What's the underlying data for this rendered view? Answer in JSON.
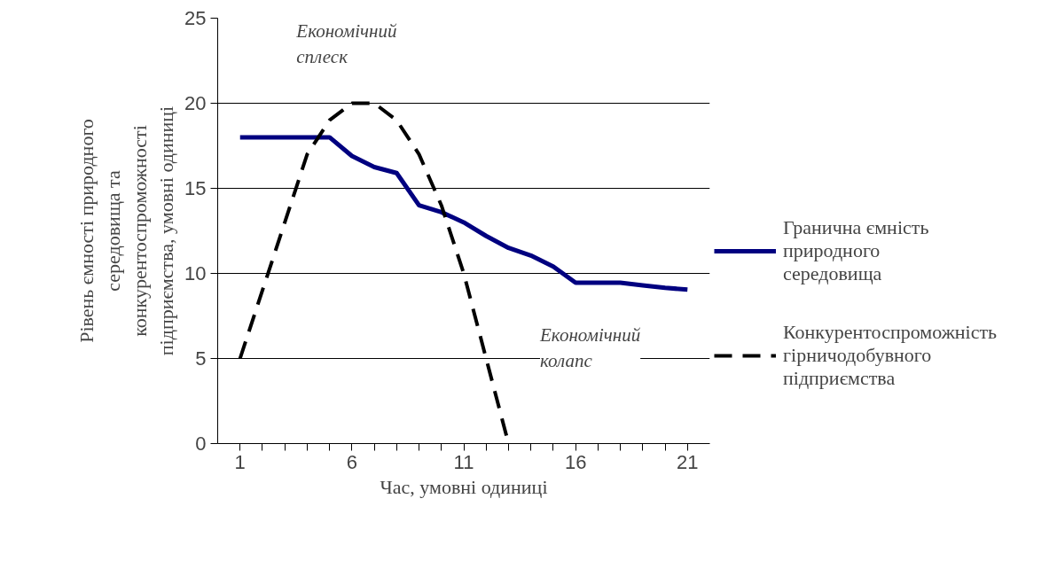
{
  "chart_data": {
    "type": "line",
    "xlabel": "Час, умовні одиниці",
    "ylabel": "Рівень ємності природного середовища та конкурентоспроможності підприємства, умовні одиниці",
    "x": [
      1,
      2,
      3,
      4,
      5,
      6,
      7,
      8,
      9,
      10,
      11,
      12,
      13,
      14,
      15,
      16,
      17,
      18,
      19,
      20,
      21
    ],
    "series": [
      {
        "name": "Гранична ємність природного середовища",
        "color": "#000080",
        "line_style": "solid",
        "values": [
          18,
          18,
          18,
          18,
          18,
          16.9,
          16.25,
          15.9,
          14,
          13.6,
          13,
          12.2,
          11.5,
          11.05,
          10.4,
          9.45,
          9.45,
          9.45,
          9.3,
          9.15,
          9.05
        ]
      },
      {
        "name": "Конкурентоспроможність гірничодобувного підприємства",
        "color": "#000000",
        "line_style": "dashed",
        "values": [
          5,
          9,
          13,
          17,
          19,
          20,
          20,
          19,
          17,
          14,
          10,
          5,
          0,
          null,
          null,
          null,
          null,
          null,
          null,
          null,
          null
        ]
      }
    ],
    "xlim": [
      0,
      22
    ],
    "xticks": [
      1,
      {
        "value": 2,
        "label": null
      },
      {
        "value": 3,
        "label": null
      },
      {
        "value": 4,
        "label": null
      },
      {
        "value": 5,
        "label": null
      },
      6,
      {
        "value": 7,
        "label": null
      },
      {
        "value": 8,
        "label": null
      },
      {
        "value": 9,
        "label": null
      },
      {
        "value": 10,
        "label": null
      },
      11,
      {
        "value": 12,
        "label": null
      },
      {
        "value": 13,
        "label": null
      },
      {
        "value": 14,
        "label": null
      },
      {
        "value": 15,
        "label": null
      },
      16,
      {
        "value": 17,
        "label": null
      },
      {
        "value": 18,
        "label": null
      },
      {
        "value": 19,
        "label": null
      },
      {
        "value": 20,
        "label": null
      },
      21
    ],
    "ylim": [
      0,
      25
    ],
    "yticks": [
      0,
      5,
      10,
      15,
      20,
      25
    ],
    "grid": "y",
    "legend": "right",
    "annotations": [
      "Економічний сплеск",
      "Економічний колапс"
    ]
  }
}
